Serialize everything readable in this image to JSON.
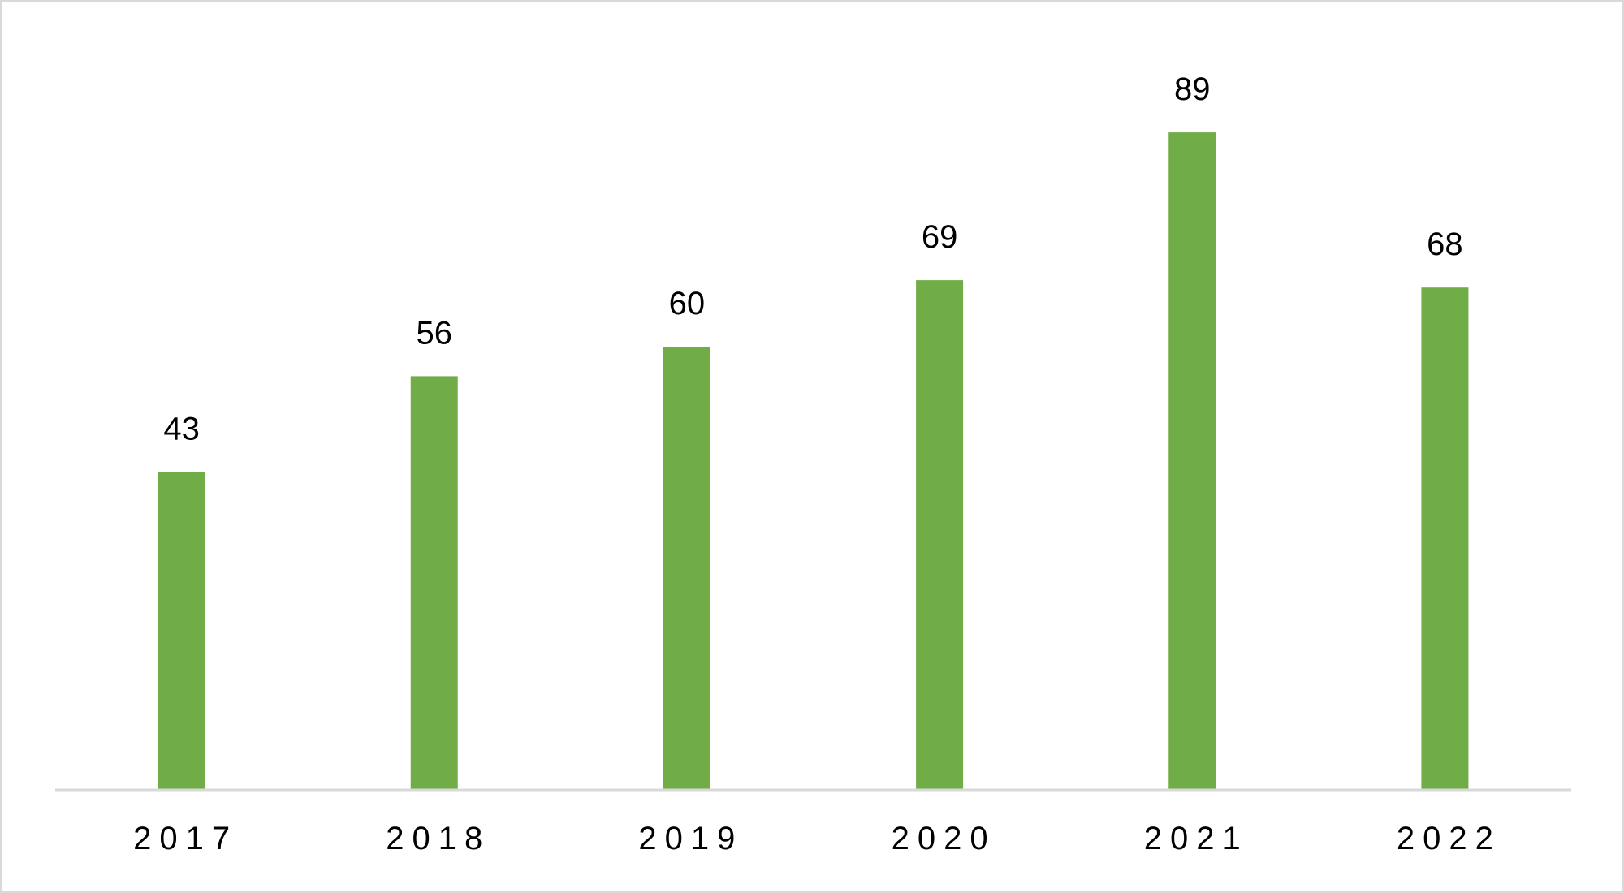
{
  "chart_data": {
    "type": "bar",
    "categories": [
      "2017",
      "2018",
      "2019",
      "2020",
      "2021",
      "2022"
    ],
    "values": [
      43,
      56,
      60,
      69,
      89,
      68
    ],
    "title": "",
    "xlabel": "",
    "ylabel": "",
    "ylim": [
      0,
      100
    ],
    "grid": false,
    "legend": "none",
    "data_labels": true,
    "colors": {
      "bar": "#70ad47",
      "axis": "#d9d9d9",
      "text": "#000000",
      "frame": "#d9d9d9"
    }
  }
}
